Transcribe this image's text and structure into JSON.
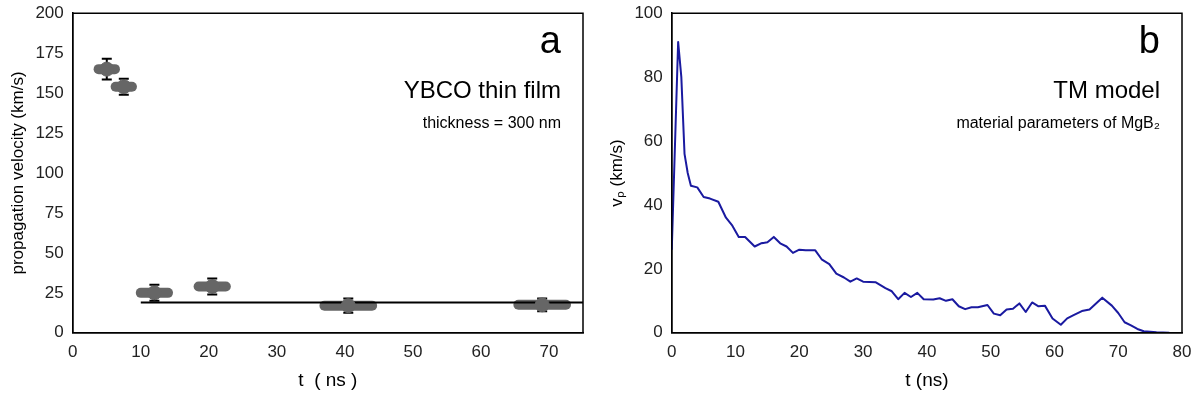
{
  "chart_data": [
    {
      "type": "scatter",
      "xlabel": "t  ( ns )",
      "ylabel": "propagation velocity (km/s)",
      "annotations": [
        "a",
        "YBCO thin film",
        "thickness = 300 nm"
      ],
      "xlim": [
        0,
        75
      ],
      "xticks": [
        0,
        10,
        20,
        30,
        40,
        50,
        60,
        70
      ],
      "ylim": [
        0,
        200
      ],
      "yticks": [
        0,
        25,
        50,
        75,
        100,
        125,
        150,
        175,
        200
      ],
      "grid": false,
      "series": [
        {
          "marker": "circle",
          "color": "#666666",
          "x": [
            5,
            7.5,
            12,
            20.5,
            40.5,
            69
          ],
          "values": [
            165,
            154,
            25,
            29,
            17,
            17.5
          ],
          "errors": [
            6.5,
            5,
            5,
            5,
            4.5,
            4
          ],
          "xerrors": [
            1.2,
            1.2,
            2,
            2,
            3.5,
            3.5
          ]
        },
        {
          "type": "line",
          "marker": "none",
          "color": "#000000",
          "x": [
            10,
            75
          ],
          "values": [
            19,
            19
          ]
        }
      ]
    },
    {
      "type": "line",
      "xlabel": "t (ns)",
      "ylabel": "vₚ (km/s)",
      "annotations": [
        "b",
        "TM model",
        "material parameters of MgB₂"
      ],
      "xlim": [
        0,
        80
      ],
      "xticks": [
        0,
        10,
        20,
        30,
        40,
        50,
        60,
        70,
        80
      ],
      "ylim": [
        0,
        100
      ],
      "yticks": [
        0,
        20,
        40,
        60,
        80,
        100
      ],
      "grid": false,
      "marker": "none",
      "line_style": "solid",
      "series": [
        {
          "color": "#1a1aa0",
          "x": [
            0,
            1,
            1.5,
            2,
            2.5,
            3,
            4,
            5,
            6,
            7.3,
            8.5,
            9.5,
            10.5,
            11.5,
            13,
            14,
            15,
            16,
            17,
            18,
            19,
            20,
            21,
            22.5,
            23.5,
            24.7,
            25.8,
            27,
            28,
            29,
            30,
            32,
            33.5,
            34.5,
            35.5,
            36.5,
            37.5,
            38.5,
            39.5,
            41,
            42,
            43,
            44,
            45,
            46,
            47,
            48,
            49.5,
            50.5,
            51.5,
            52.5,
            53.5,
            54.5,
            55.5,
            56.5,
            57.5,
            58.5,
            59.7,
            61,
            62,
            63,
            64.3,
            65.5,
            67.5,
            69,
            70,
            71,
            72,
            73,
            74,
            76,
            78
          ],
          "values": [
            26,
            91,
            80,
            56,
            50,
            46,
            45.5,
            42.5,
            42,
            41,
            36,
            33.5,
            30,
            30,
            27,
            28,
            28.3,
            30,
            28,
            27,
            25,
            26,
            25.8,
            25.8,
            23,
            21.5,
            18.5,
            17.3,
            16,
            17,
            16,
            15.8,
            14,
            13,
            10.5,
            12.5,
            11.2,
            12.5,
            10.5,
            10.4,
            10.8,
            10,
            10.5,
            8.3,
            7.4,
            8,
            8,
            8.7,
            6,
            5.5,
            7.3,
            7.5,
            9.2,
            6.5,
            9.5,
            8.3,
            8.5,
            4.5,
            2.5,
            4.5,
            5.5,
            6.8,
            7.3,
            11,
            8.5,
            6.2,
            3.3,
            2.3,
            1.2,
            0.5,
            0.2,
            0
          ]
        }
      ]
    }
  ]
}
